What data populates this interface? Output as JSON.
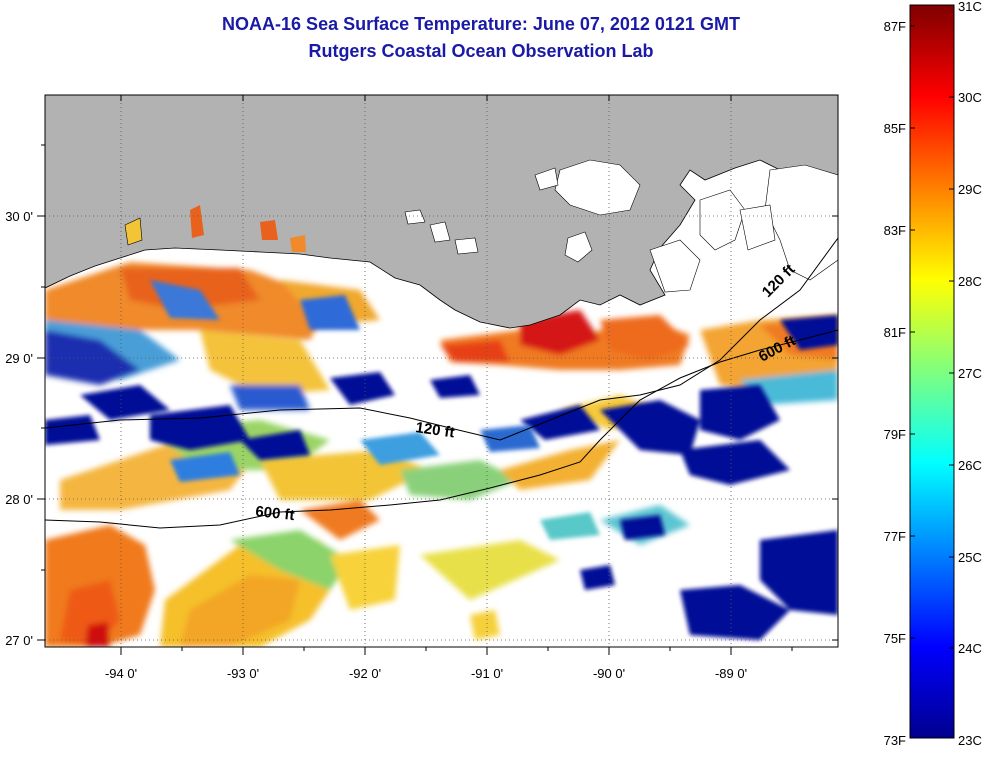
{
  "title": {
    "line1": "NOAA-16 Sea Surface Temperature:  June 07, 2012 0121 GMT",
    "line2": "Rutgers Coastal Ocean Observation Lab"
  },
  "axes": {
    "x_ticks": [
      "-94 0'",
      "-93 0'",
      "-92 0'",
      "-91 0'",
      "-90 0'",
      "-89 0'"
    ],
    "y_ticks": [
      "30 0'",
      "29 0'",
      "28 0'",
      "27 0'"
    ]
  },
  "contours": {
    "shelf_120_label_west": "120 ft",
    "shelf_120_label_east": "120 ft",
    "shelf_600_label_west": "600 ft",
    "shelf_600_label_east": "600 ft"
  },
  "colorbar": {
    "fahrenheit_labels": [
      "87F",
      "85F",
      "83F",
      "81F",
      "79F",
      "77F",
      "75F",
      "73F"
    ],
    "celsius_labels": [
      "31C",
      "30C",
      "29C",
      "28C",
      "27C",
      "26C",
      "25C",
      "24C",
      "23C"
    ]
  },
  "colors": {
    "land": "#b2b2b2",
    "cloud_mask": "#ffffff",
    "title": "#1a1aa6",
    "cold": "#00008c",
    "warm": "#8c0000"
  }
}
